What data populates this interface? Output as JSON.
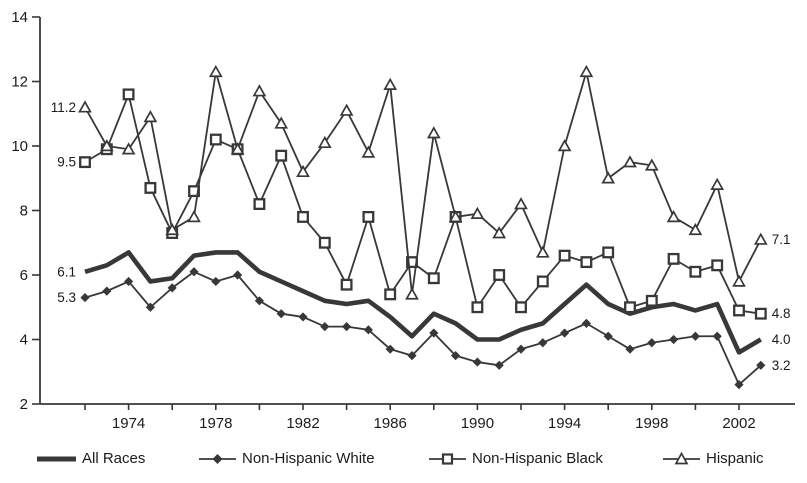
{
  "chart": {
    "background": "#ffffff",
    "line_color": "#383838",
    "text_color": "#1b1b1b"
  },
  "chart_data": {
    "type": "line",
    "title": "",
    "xlabel": "",
    "ylabel": "",
    "xlim": [
      1972,
      2003
    ],
    "ylim": [
      2,
      14
    ],
    "grid": false,
    "legend_position": "bottom",
    "x": [
      1972,
      1973,
      1974,
      1975,
      1976,
      1977,
      1978,
      1979,
      1980,
      1981,
      1982,
      1983,
      1984,
      1985,
      1986,
      1987,
      1988,
      1989,
      1990,
      1991,
      1992,
      1993,
      1994,
      1995,
      1996,
      1997,
      1998,
      1999,
      2000,
      2001,
      2002,
      2003
    ],
    "x_tick_labels": [
      "1974",
      "1978",
      "1982",
      "1986",
      "1990",
      "1994",
      "1998",
      "2002"
    ],
    "x_tick_label_years": [
      1974,
      1978,
      1982,
      1986,
      1990,
      1994,
      1998,
      2002
    ],
    "x_minor_tick_years": [
      1972,
      1974,
      1976,
      1978,
      1980,
      1982,
      1984,
      1986,
      1988,
      1990,
      1992,
      1994,
      1996,
      1998,
      2000,
      2002
    ],
    "y_ticks": [
      2,
      4,
      6,
      8,
      10,
      12,
      14
    ],
    "y_tick_labels": [
      "2",
      "4",
      "6",
      "8",
      "10",
      "12",
      "14"
    ],
    "series": [
      {
        "name": "All Races",
        "style": "thick",
        "marker": "none",
        "left_label": "6.1",
        "right_label": "4.0",
        "values": [
          6.1,
          6.3,
          6.7,
          5.8,
          5.9,
          6.6,
          6.7,
          6.7,
          6.1,
          5.8,
          5.5,
          5.2,
          5.1,
          5.2,
          4.7,
          4.1,
          4.8,
          4.5,
          4.0,
          4.0,
          4.3,
          4.5,
          5.1,
          5.7,
          5.1,
          4.8,
          5.0,
          5.1,
          4.9,
          5.1,
          3.6,
          4.0
        ]
      },
      {
        "name": "Non-Hispanic White",
        "style": "thin",
        "marker": "diamond-filled",
        "left_label": "5.3",
        "right_label": "3.2",
        "values": [
          5.3,
          5.5,
          5.8,
          5.0,
          5.6,
          6.1,
          5.8,
          6.0,
          5.2,
          4.8,
          4.7,
          4.4,
          4.4,
          4.3,
          3.7,
          3.5,
          4.2,
          3.5,
          3.3,
          3.2,
          3.7,
          3.9,
          4.2,
          4.5,
          4.1,
          3.7,
          3.9,
          4.0,
          4.1,
          4.1,
          2.6,
          3.2
        ]
      },
      {
        "name": "Non-Hispanic Black",
        "style": "thin",
        "marker": "square-open",
        "left_label": "9.5",
        "right_label": "4.8",
        "values": [
          9.5,
          9.9,
          11.6,
          8.7,
          7.3,
          8.6,
          10.2,
          9.9,
          8.2,
          9.7,
          7.8,
          7.0,
          5.7,
          7.8,
          5.4,
          6.4,
          5.9,
          7.8,
          5.0,
          6.0,
          5.0,
          5.8,
          6.6,
          6.4,
          6.7,
          5.0,
          5.2,
          6.5,
          6.1,
          6.3,
          4.9,
          4.8
        ]
      },
      {
        "name": "Hispanic",
        "style": "thin",
        "marker": "triangle-open",
        "left_label": "11.2",
        "right_label": "7.1",
        "values": [
          11.2,
          10.0,
          9.9,
          10.9,
          7.4,
          7.8,
          12.3,
          9.9,
          11.7,
          10.7,
          9.2,
          10.1,
          11.1,
          9.8,
          11.9,
          5.4,
          10.4,
          7.8,
          7.9,
          7.3,
          8.2,
          6.7,
          10.0,
          12.3,
          9.0,
          9.5,
          9.4,
          7.8,
          7.4,
          8.8,
          5.8,
          7.1
        ]
      }
    ]
  }
}
